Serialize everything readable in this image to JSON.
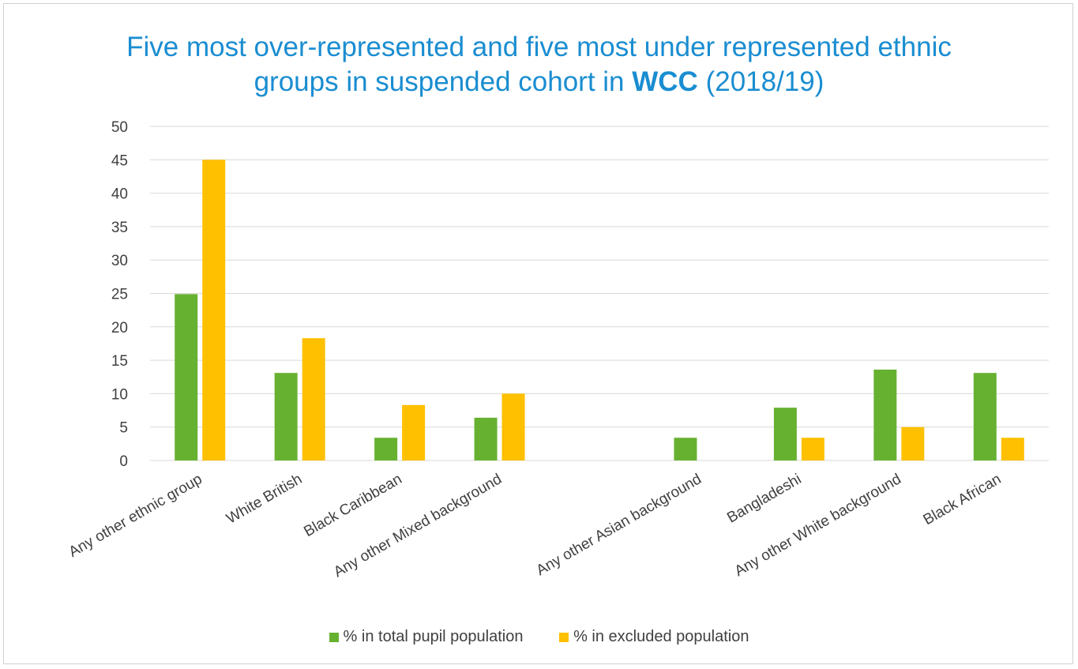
{
  "title": {
    "line1": "Five most over-represented and five most under represented ethnic",
    "line2_pre": "groups in suspended cohort in ",
    "line2_bold": "WCC",
    "line2_post": " (2018/19)"
  },
  "chart_data": {
    "type": "bar",
    "title": "Five most over-represented and five most under represented ethnic groups in suspended cohort in WCC (2018/19)",
    "categories": [
      "Any other ethnic group",
      "White British",
      "Black Caribbean",
      "Any other Mixed background",
      "",
      "Any other Asian background",
      "Bangladeshi",
      "Any other White background",
      "Black African"
    ],
    "series": [
      {
        "name": "% in total pupil population",
        "color": "#67b131",
        "values": [
          24.9,
          13.1,
          3.4,
          6.4,
          null,
          3.4,
          7.9,
          13.6,
          13.1
        ]
      },
      {
        "name": "% in excluded population",
        "color": "#ffc000",
        "values": [
          45,
          18.3,
          8.3,
          10,
          null,
          null,
          3.4,
          5,
          3.4
        ]
      }
    ],
    "ylim": [
      0,
      50
    ],
    "yticks": [
      0,
      5,
      10,
      15,
      20,
      25,
      30,
      35,
      40,
      45,
      50
    ],
    "grid": true,
    "legend_position": "bottom",
    "xlabel": "",
    "ylabel": ""
  },
  "legend": {
    "series1": "% in total pupil population",
    "series2": "% in excluded population"
  }
}
